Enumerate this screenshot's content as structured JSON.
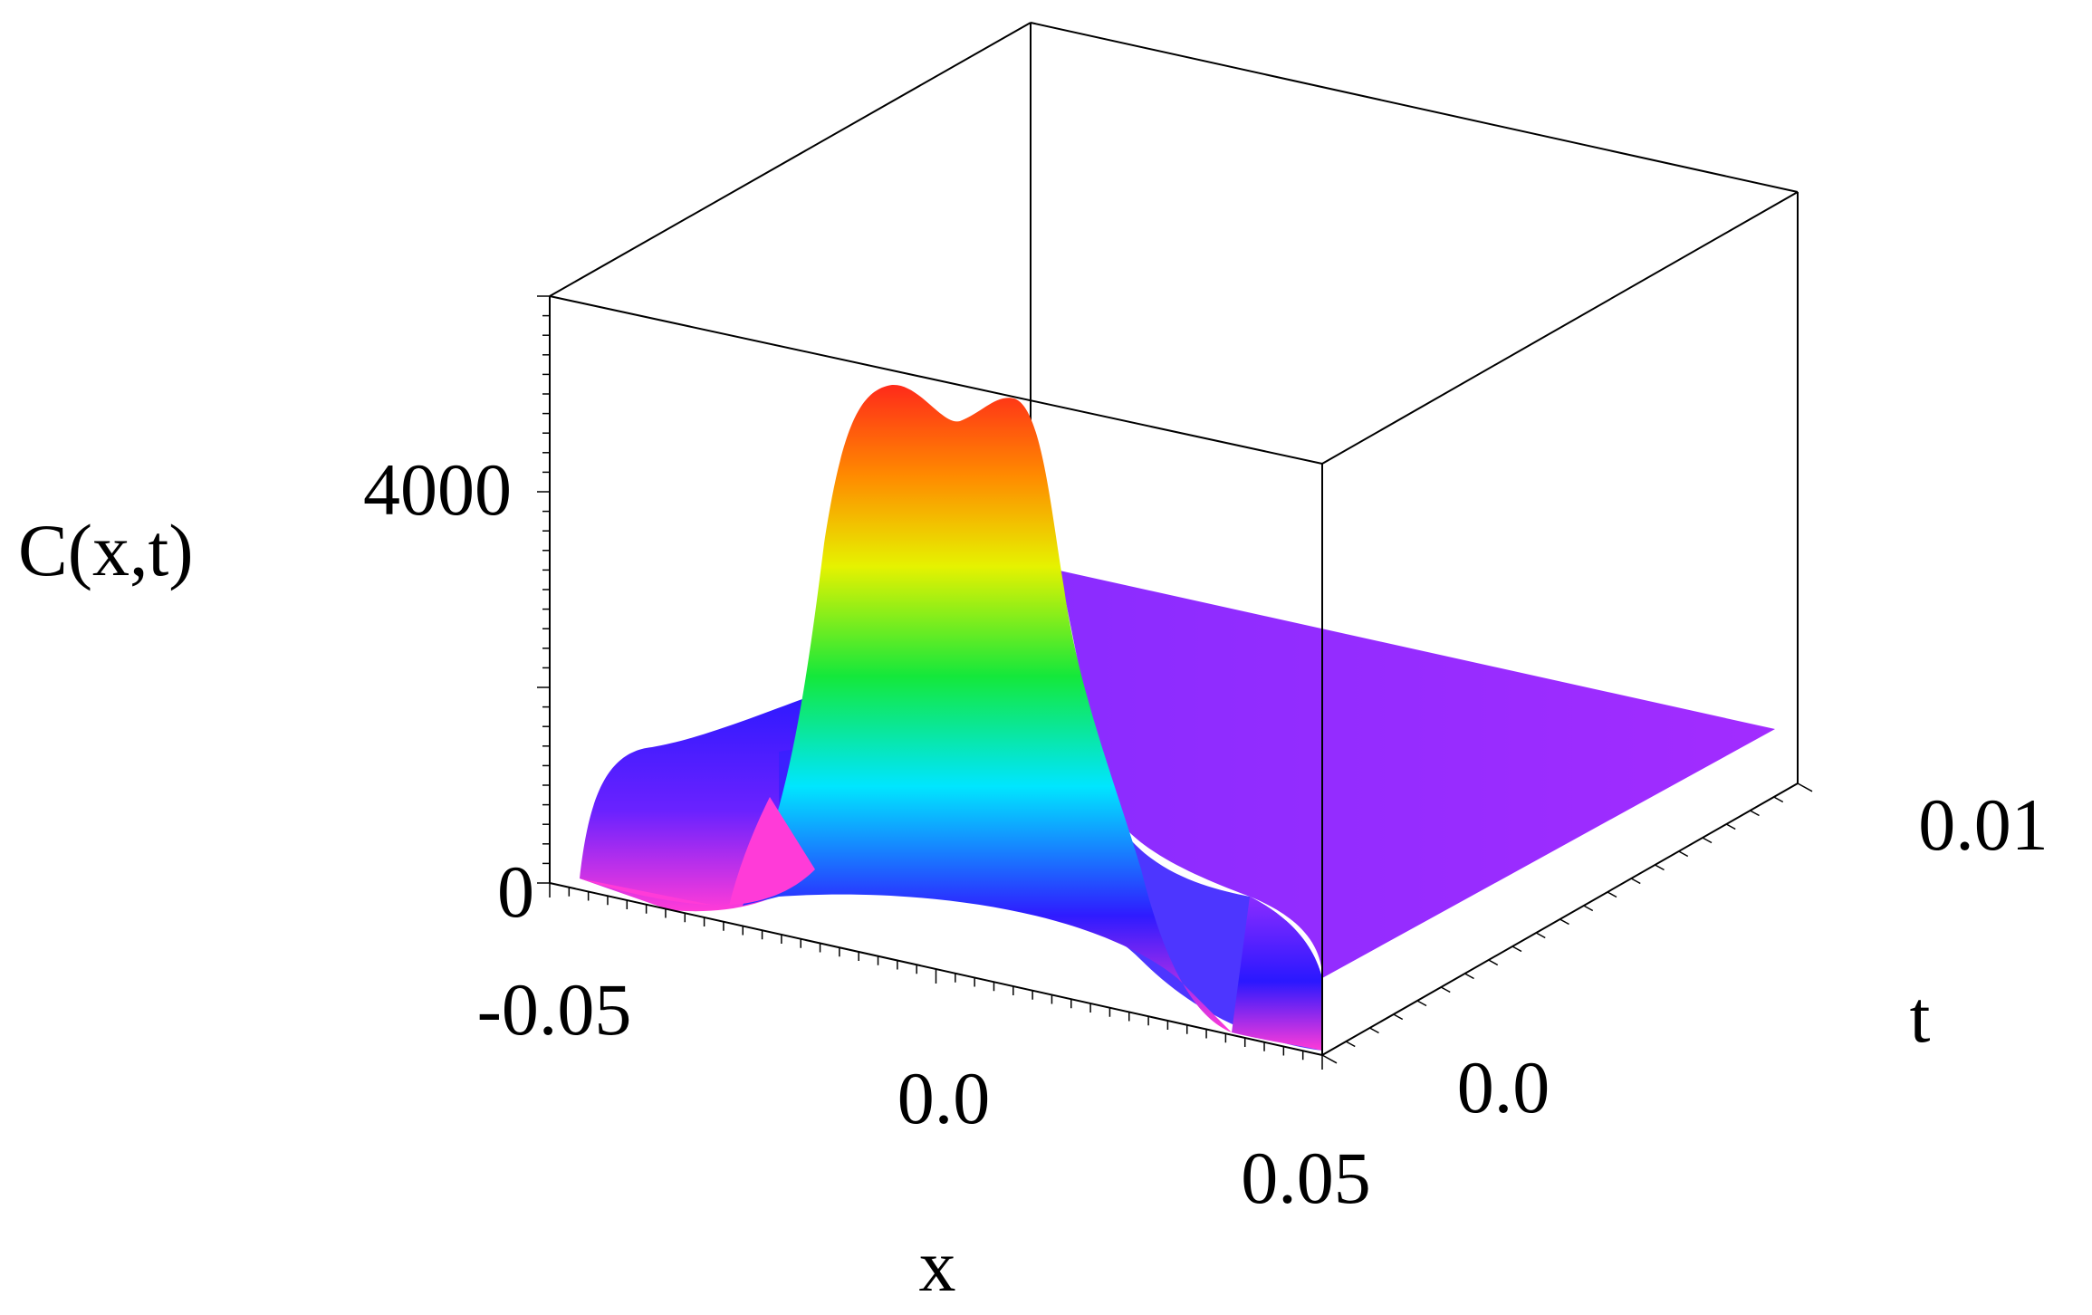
{
  "chart_data": {
    "type": "surface",
    "zlabel": "C(x,t)",
    "xlabel": "x",
    "ylabel": "t",
    "x_range": [
      -0.05,
      0.05
    ],
    "t_range": [
      0.0,
      0.01
    ],
    "z_range": [
      0,
      6000
    ],
    "x_ticks": [
      {
        "value": -0.05,
        "label": "-0.05"
      },
      {
        "value": 0.0,
        "label": "0.0"
      },
      {
        "value": 0.05,
        "label": "0.05"
      }
    ],
    "t_ticks": [
      {
        "value": 0.0,
        "label": "0.0"
      },
      {
        "value": 0.01,
        "label": "0.01"
      }
    ],
    "z_ticks": [
      {
        "value": 0,
        "label": "0"
      },
      {
        "value": 4000,
        "label": "4000"
      }
    ],
    "surface": {
      "description_of_shape": "at t=0 the concentration has a central double-peaked hump near x=0; it decays toward a flat plateau as t increases",
      "profile_t0": {
        "x": [
          -0.05,
          -0.045,
          -0.04,
          -0.03,
          -0.02,
          -0.015,
          -0.01,
          -0.005,
          0.0,
          0.005,
          0.01,
          0.015,
          0.02,
          0.03,
          0.04,
          0.045,
          0.05
        ],
        "C": [
          0,
          50,
          80,
          100,
          300,
          1500,
          3800,
          4700,
          4500,
          4700,
          3800,
          1500,
          300,
          100,
          80,
          50,
          0
        ]
      },
      "plateau_level_late_t": 1500,
      "colormap": "rainbow (magenta at low values, through blue, cyan, green, yellow, to red at the peak)"
    },
    "grid": false,
    "box": true
  }
}
